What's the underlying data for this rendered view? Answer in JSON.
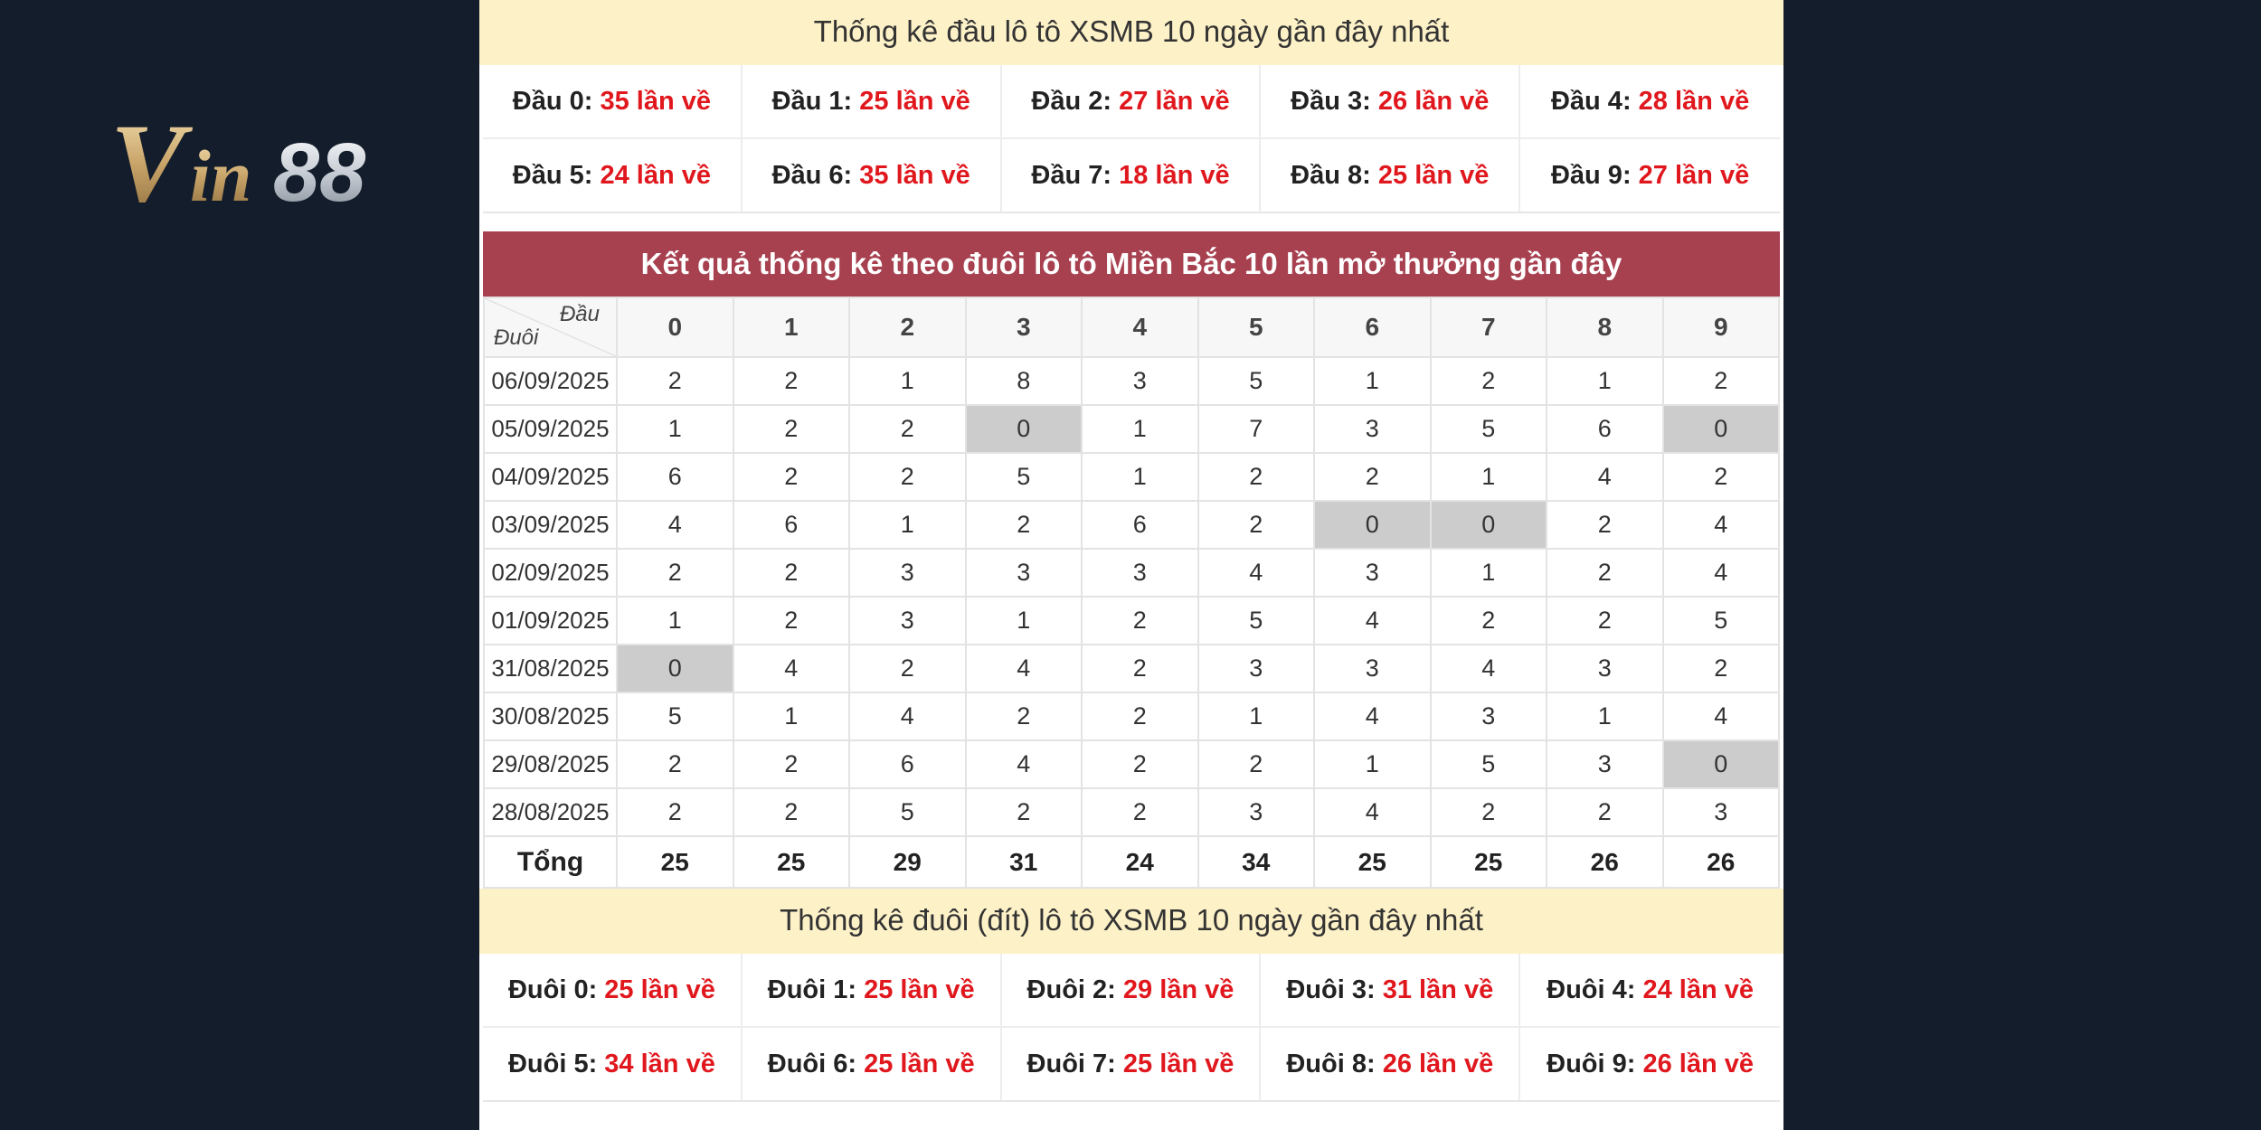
{
  "logo": {
    "text": "Vin88"
  },
  "head_stats": {
    "title": "Thống kê đầu lô tô XSMB 10 ngày gần đây nhất",
    "items": [
      {
        "label": "Đầu 0:",
        "value": "35 lần về"
      },
      {
        "label": "Đầu 1:",
        "value": "25 lần về"
      },
      {
        "label": "Đầu 2:",
        "value": "27 lần về"
      },
      {
        "label": "Đầu 3:",
        "value": "26 lần về"
      },
      {
        "label": "Đầu 4:",
        "value": "28 lần về"
      },
      {
        "label": "Đầu 5:",
        "value": "24 lần về"
      },
      {
        "label": "Đầu 6:",
        "value": "35 lần về"
      },
      {
        "label": "Đầu 7:",
        "value": "18 lần về"
      },
      {
        "label": "Đầu 8:",
        "value": "25 lần về"
      },
      {
        "label": "Đầu 9:",
        "value": "27 lần về"
      }
    ]
  },
  "table": {
    "title": "Kết quả thống kê theo đuôi lô tô Miền Bắc 10 lần mở thưởng gần đây",
    "corner_top": "Đầu",
    "corner_bottom": "Đuôi",
    "columns": [
      "0",
      "1",
      "2",
      "3",
      "4",
      "5",
      "6",
      "7",
      "8",
      "9"
    ],
    "rows": [
      {
        "date": "06/09/2025",
        "values": [
          "2",
          "2",
          "1",
          "8",
          "3",
          "5",
          "1",
          "2",
          "1",
          "2"
        ]
      },
      {
        "date": "05/09/2025",
        "values": [
          "1",
          "2",
          "2",
          "0",
          "1",
          "7",
          "3",
          "5",
          "6",
          "0"
        ]
      },
      {
        "date": "04/09/2025",
        "values": [
          "6",
          "2",
          "2",
          "5",
          "1",
          "2",
          "2",
          "1",
          "4",
          "2"
        ]
      },
      {
        "date": "03/09/2025",
        "values": [
          "4",
          "6",
          "1",
          "2",
          "6",
          "2",
          "0",
          "0",
          "2",
          "4"
        ]
      },
      {
        "date": "02/09/2025",
        "values": [
          "2",
          "2",
          "3",
          "3",
          "3",
          "4",
          "3",
          "1",
          "2",
          "4"
        ]
      },
      {
        "date": "01/09/2025",
        "values": [
          "1",
          "2",
          "3",
          "1",
          "2",
          "5",
          "4",
          "2",
          "2",
          "5"
        ]
      },
      {
        "date": "31/08/2025",
        "values": [
          "0",
          "4",
          "2",
          "4",
          "2",
          "3",
          "3",
          "4",
          "3",
          "2"
        ]
      },
      {
        "date": "30/08/2025",
        "values": [
          "5",
          "1",
          "4",
          "2",
          "2",
          "1",
          "4",
          "3",
          "1",
          "4"
        ]
      },
      {
        "date": "29/08/2025",
        "values": [
          "2",
          "2",
          "6",
          "4",
          "2",
          "2",
          "1",
          "5",
          "3",
          "0"
        ]
      },
      {
        "date": "28/08/2025",
        "values": [
          "2",
          "2",
          "5",
          "2",
          "2",
          "3",
          "4",
          "2",
          "2",
          "3"
        ]
      }
    ],
    "total_label": "Tổng",
    "totals": [
      "25",
      "25",
      "29",
      "31",
      "24",
      "34",
      "25",
      "25",
      "26",
      "26"
    ],
    "highlight_color": "#cccccc"
  },
  "tail_stats": {
    "title": "Thống kê đuôi (đít) lô tô XSMB 10 ngày gần đây nhất",
    "items": [
      {
        "label": "Đuôi 0:",
        "value": "25 lần về"
      },
      {
        "label": "Đuôi 1:",
        "value": "25 lần về"
      },
      {
        "label": "Đuôi 2:",
        "value": "29 lần về"
      },
      {
        "label": "Đuôi 3:",
        "value": "31 lần về"
      },
      {
        "label": "Đuôi 4:",
        "value": "24 lần về"
      },
      {
        "label": "Đuôi 5:",
        "value": "34 lần về"
      },
      {
        "label": "Đuôi 6:",
        "value": "25 lần về"
      },
      {
        "label": "Đuôi 7:",
        "value": "25 lần về"
      },
      {
        "label": "Đuôi 8:",
        "value": "26 lần về"
      },
      {
        "label": "Đuôi 9:",
        "value": "26 lần về"
      }
    ]
  },
  "colors": {
    "background": "#141d2b",
    "header_band": "#fdf1c7",
    "title_bar": "#a7404f",
    "value_red": "#e0181e"
  }
}
